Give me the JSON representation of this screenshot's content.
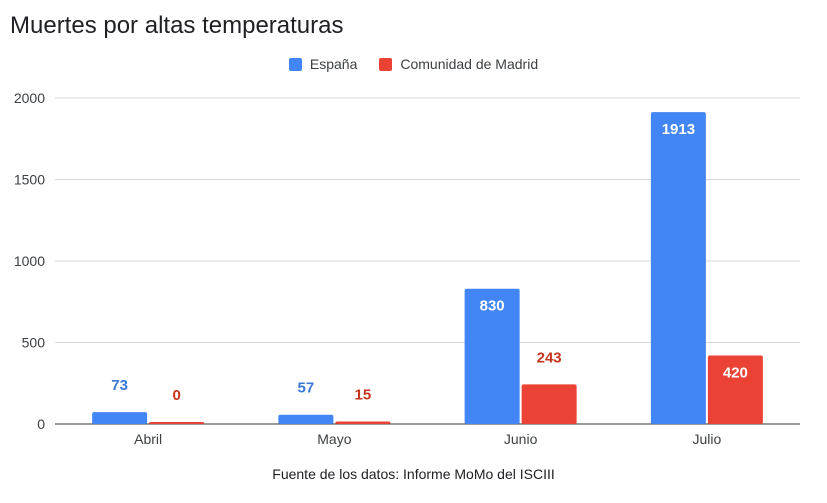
{
  "chart_data": {
    "type": "bar",
    "title": "Muertes por altas temperaturas",
    "categories": [
      "Abril",
      "Mayo",
      "Junio",
      "Julio"
    ],
    "series": [
      {
        "name": "España",
        "values": [
          73,
          57,
          830,
          1913
        ],
        "color": "#4285f4",
        "label_color": "#3a78d8"
      },
      {
        "name": "Comunidad de Madrid",
        "values": [
          0,
          15,
          243,
          420
        ],
        "color": "#ea4335",
        "label_color": "#c5351d"
      }
    ],
    "yticks": [
      "0",
      "500",
      "1000",
      "1500",
      "2000"
    ],
    "ylim": [
      0,
      2000
    ],
    "grid": true,
    "legend_position": "top-center",
    "xlabel": "",
    "ylabel": ""
  },
  "footnote": "Fuente de los datos: Informe MoMo del ISCIII"
}
